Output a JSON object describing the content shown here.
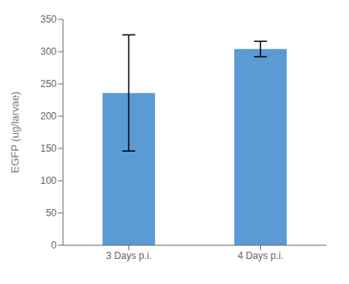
{
  "chart_data": {
    "type": "bar",
    "categories": [
      "3 Days p.i.",
      "4 Days p.i."
    ],
    "values": [
      236.0,
      304.0
    ],
    "errors": [
      90.0,
      12.0
    ],
    "color": "#5b9bd5",
    "ylabel": "EGFP (ug/larvae)",
    "ylim": [
      0,
      350.0
    ],
    "yticks": [
      0.0,
      50.0,
      100.0,
      150.0,
      200.0,
      250.0,
      300.0,
      350.0
    ],
    "grid": false
  }
}
